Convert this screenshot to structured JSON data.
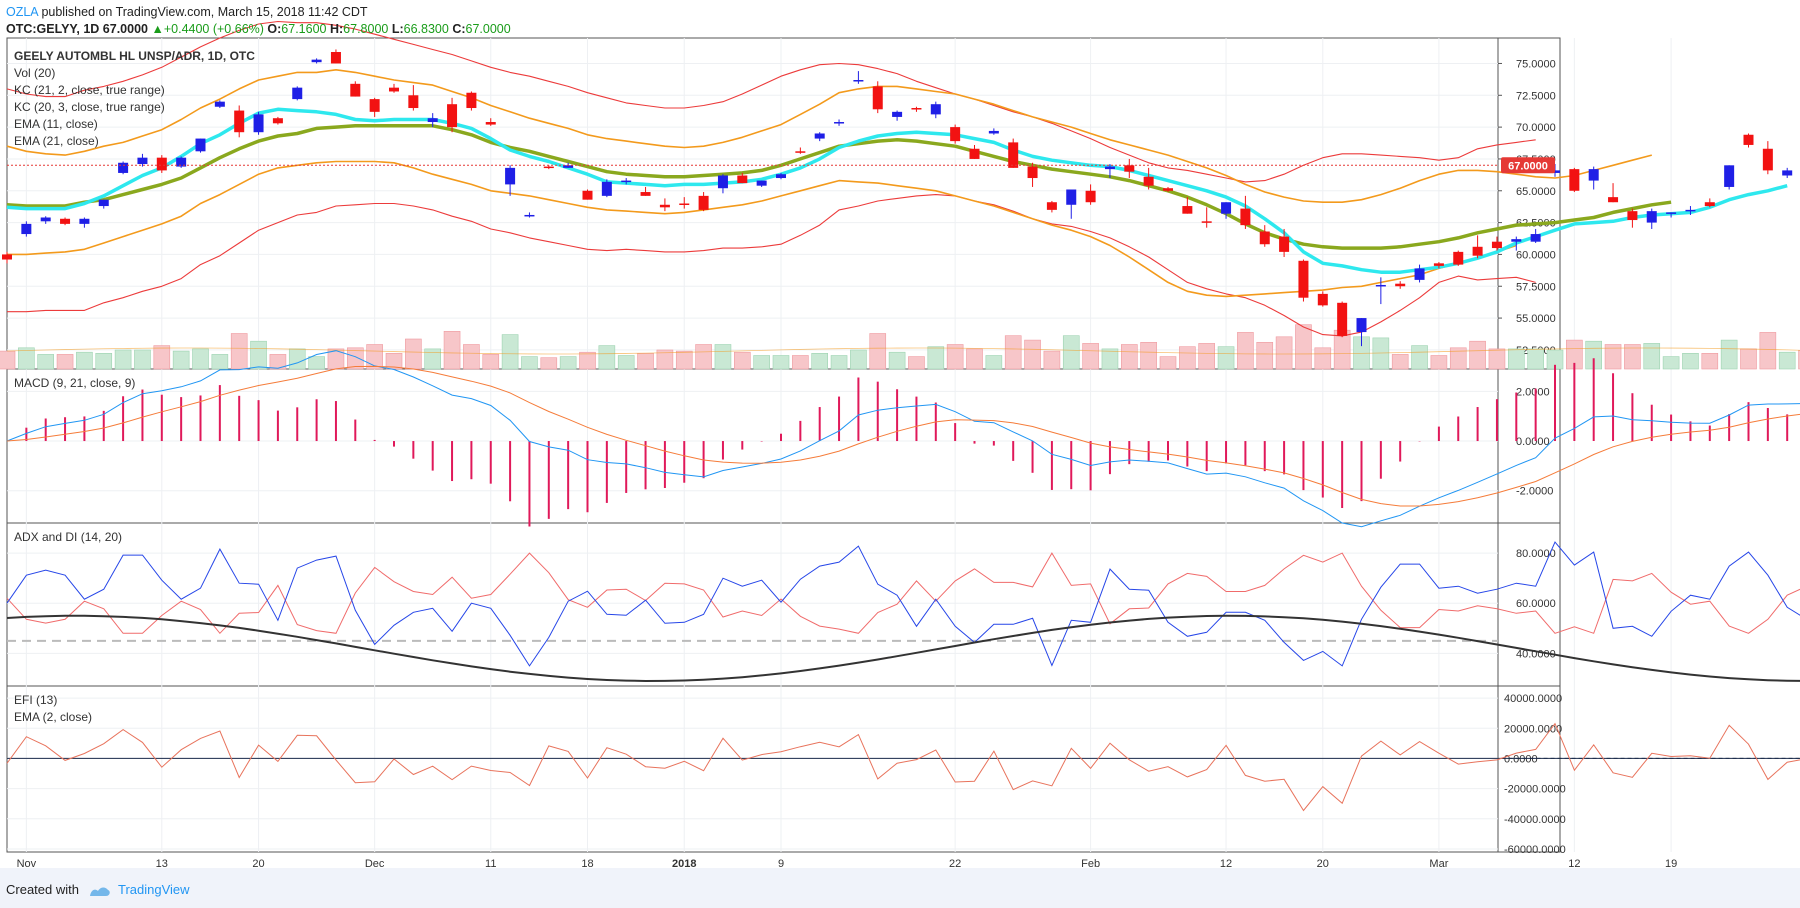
{
  "header": {
    "publisher": "OZLA",
    "published_text": "published on TradingView.com, March 15, 2018 11:42 CDT",
    "symbol_line": {
      "symbol": "OTC:GELYY, 1D",
      "last": "67.0000",
      "change": "+0.4400 (+0.66%)",
      "o_label": "O:",
      "o": "67.1600",
      "h_label": "H:",
      "h": "67.8000",
      "l_label": "L:",
      "l": "66.8300",
      "c_label": "C:",
      "c": "67.0000"
    }
  },
  "footer": {
    "created_with": "Created with",
    "brand": "TradingView"
  },
  "colors": {
    "bull": "#1f1fe6",
    "bear": "#f21212",
    "ema11": "#2ee8ee",
    "ema21": "#8aa81e",
    "kc_inner": "#f39a1c",
    "kc_outer": "#ec3b3b",
    "macd": "#2196f3",
    "signal": "#f57c3a",
    "hist": "#e0195a",
    "adx": "#333333",
    "di_plus": "#2646e8",
    "di_minus": "#f06b6b",
    "efi": "#e8735c",
    "last_price": "#e53935"
  },
  "chart_data": [
    {
      "type": "candlestick",
      "legend": [
        "GEELY AUTOMBL HL UNSP/ADR, 1D, OTC",
        "Vol (20)",
        "KC (21, 2, close, true range)",
        "KC (20, 3, close, true range)",
        "EMA (11, close)",
        "EMA (21, close)"
      ],
      "x_ticks": [
        "Nov",
        "13",
        "20",
        "Dec",
        "11",
        "18",
        "2018",
        "9",
        "22",
        "Feb",
        "12",
        "20",
        "Mar",
        "12",
        "19"
      ],
      "x_tick_index": [
        1,
        8,
        13,
        19,
        25,
        30,
        35,
        40,
        49,
        56,
        63,
        68,
        74,
        81,
        86
      ],
      "y_ticks": [
        "75.0000",
        "72.5000",
        "70.0000",
        "67.5000",
        "65.0000",
        "62.5000",
        "60.0000",
        "57.5000",
        "55.0000",
        "52.5000"
      ],
      "ylim": [
        51.0,
        77.0
      ],
      "last_price_label": "67.0000",
      "last_price": 67.0,
      "ohlc": [
        [
          60,
          60.2,
          59.3,
          59.6
        ],
        [
          61.6,
          62.6,
          61.4,
          62.4
        ],
        [
          62.6,
          63.0,
          62.4,
          62.9
        ],
        [
          62.8,
          62.9,
          62.3,
          62.4
        ],
        [
          62.4,
          62.9,
          62.1,
          62.8
        ],
        [
          63.8,
          64.3,
          63.6,
          64.3
        ],
        [
          66.4,
          67.3,
          66.3,
          67.2
        ],
        [
          67.1,
          67.9,
          66.9,
          67.6
        ],
        [
          67.6,
          67.8,
          66.4,
          66.6
        ],
        [
          66.9,
          67.7,
          66.8,
          67.6
        ],
        [
          68.1,
          69.1,
          68.0,
          69.1
        ],
        [
          71.6,
          72.1,
          71.5,
          72.0
        ],
        [
          71.3,
          71.7,
          69.2,
          69.6
        ],
        [
          69.6,
          71.2,
          69.4,
          71.0
        ],
        [
          70.7,
          70.8,
          70.2,
          70.3
        ],
        [
          72.2,
          73.2,
          72.1,
          73.1
        ],
        [
          75.1,
          75.4,
          75.0,
          75.3
        ],
        [
          75.9,
          76.1,
          75.0,
          75.0
        ],
        [
          73.4,
          73.6,
          72.4,
          72.4
        ],
        [
          72.2,
          72.3,
          70.8,
          71.2
        ],
        [
          73.1,
          73.4,
          72.7,
          72.8
        ],
        [
          72.5,
          73.3,
          71.3,
          71.5
        ],
        [
          70.4,
          71.1,
          70.0,
          70.7
        ],
        [
          71.8,
          72.3,
          69.6,
          70.0
        ],
        [
          72.7,
          72.8,
          71.3,
          71.5
        ],
        [
          70.4,
          70.7,
          70.1,
          70.2
        ],
        [
          65.5,
          67.0,
          64.6,
          66.8
        ],
        [
          63.1,
          63.3,
          62.9,
          63.1
        ],
        [
          66.9,
          67.0,
          66.7,
          66.8
        ],
        [
          66.8,
          67.2,
          66.8,
          67.0
        ],
        [
          65.0,
          65.1,
          64.3,
          64.3
        ],
        [
          64.6,
          65.9,
          64.5,
          65.7
        ],
        [
          65.8,
          66.0,
          65.5,
          65.8
        ],
        [
          64.9,
          65.3,
          64.6,
          64.6
        ],
        [
          63.9,
          64.4,
          63.4,
          63.7
        ],
        [
          64.0,
          64.5,
          63.6,
          63.9
        ],
        [
          64.6,
          64.9,
          63.4,
          63.5
        ],
        [
          65.2,
          66.3,
          64.8,
          66.2
        ],
        [
          66.2,
          66.4,
          65.6,
          65.6
        ],
        [
          65.4,
          65.8,
          65.3,
          65.8
        ],
        [
          66.0,
          66.4,
          65.9,
          66.3
        ],
        [
          68.1,
          68.4,
          67.9,
          68.0
        ],
        [
          69.1,
          69.6,
          68.9,
          69.5
        ],
        [
          70.3,
          70.6,
          70.1,
          70.4
        ],
        [
          73.7,
          74.4,
          73.4,
          73.7
        ],
        [
          73.2,
          73.6,
          71.1,
          71.4
        ],
        [
          70.8,
          71.3,
          70.5,
          71.2
        ],
        [
          71.5,
          71.6,
          71.2,
          71.4
        ],
        [
          71.0,
          72.0,
          70.7,
          71.8
        ],
        [
          70.0,
          70.2,
          68.7,
          68.9
        ],
        [
          68.3,
          68.6,
          67.5,
          67.5
        ],
        [
          69.5,
          69.9,
          69.4,
          69.7
        ],
        [
          68.8,
          69.1,
          66.8,
          66.8
        ],
        [
          66.9,
          67.2,
          65.3,
          66.0
        ],
        [
          64.1,
          64.2,
          63.3,
          63.5
        ],
        [
          63.9,
          65.1,
          62.8,
          65.1
        ],
        [
          65.0,
          65.5,
          63.9,
          64.1
        ],
        [
          66.7,
          67.1,
          66.0,
          66.9
        ],
        [
          67.0,
          67.5,
          66.0,
          66.5
        ],
        [
          66.1,
          66.8,
          65.1,
          65.4
        ],
        [
          65.2,
          65.3,
          64.9,
          65.0
        ],
        [
          63.8,
          64.5,
          63.2,
          63.2
        ],
        [
          62.6,
          63.7,
          62.1,
          62.5
        ],
        [
          63.2,
          64.1,
          62.8,
          64.1
        ],
        [
          63.6,
          64.6,
          62.0,
          62.3
        ],
        [
          61.8,
          62.3,
          60.6,
          60.8
        ],
        [
          61.4,
          62.0,
          59.8,
          60.2
        ],
        [
          59.5,
          59.6,
          56.3,
          56.6
        ],
        [
          56.9,
          57.1,
          55.9,
          56.0
        ],
        [
          56.2,
          56.3,
          53.5,
          53.6
        ],
        [
          53.9,
          55.0,
          52.8,
          55.0
        ],
        [
          57.5,
          58.2,
          56.1,
          57.6
        ],
        [
          57.7,
          57.9,
          57.3,
          57.5
        ],
        [
          58.0,
          59.2,
          57.8,
          58.9
        ],
        [
          59.3,
          59.4,
          58.9,
          59.1
        ],
        [
          60.2,
          60.3,
          59.1,
          59.2
        ],
        [
          60.6,
          61.5,
          59.7,
          59.9
        ],
        [
          61.0,
          61.4,
          60.3,
          60.5
        ],
        [
          61.0,
          61.4,
          60.3,
          61.2
        ],
        [
          61.0,
          62.0,
          60.9,
          61.6
        ],
        [
          66.4,
          67.1,
          66.1,
          66.6
        ],
        [
          66.7,
          66.8,
          64.9,
          65.0
        ],
        [
          65.8,
          66.9,
          65.1,
          66.7
        ],
        [
          64.5,
          65.6,
          64.1,
          64.1
        ],
        [
          63.4,
          63.6,
          62.1,
          62.7
        ],
        [
          62.5,
          63.6,
          62.0,
          63.4
        ],
        [
          63.2,
          63.3,
          62.9,
          63.3
        ],
        [
          63.4,
          63.8,
          63.1,
          63.5
        ],
        [
          64.1,
          64.4,
          63.7,
          63.8
        ],
        [
          65.3,
          67.0,
          65.1,
          67.0
        ],
        [
          69.4,
          69.5,
          68.4,
          68.6
        ],
        [
          68.3,
          68.9,
          66.3,
          66.6
        ],
        [
          66.2,
          66.8,
          66.0,
          66.6
        ],
        [
          67.16,
          67.8,
          66.83,
          67.0
        ]
      ],
      "ema11": [
        63.7,
        63.6,
        63.6,
        63.6,
        64.0,
        64.6,
        65.4,
        66.2,
        66.8,
        67.7,
        68.7,
        69.4,
        70.3,
        71.1,
        71.4,
        71.3,
        71.2,
        71.0,
        70.6,
        70.5,
        70.6,
        70.6,
        70.6,
        70.3,
        69.9,
        69.1,
        68.2,
        67.7,
        67.3,
        66.8,
        66.3,
        65.7,
        65.6,
        65.5,
        65.4,
        65.5,
        65.5,
        65.6,
        65.7,
        65.9,
        66.3,
        66.8,
        67.5,
        68.4,
        68.9,
        69.3,
        69.5,
        69.6,
        69.5,
        69.4,
        69.1,
        68.8,
        68.2,
        67.7,
        67.4,
        67.2,
        67.0,
        66.9,
        66.6,
        66.2,
        65.8,
        65.4,
        65.0,
        64.5,
        63.8,
        62.8,
        61.7,
        60.2,
        59.3,
        59.1,
        58.8,
        58.6,
        58.6,
        58.8,
        59.0,
        59.3,
        59.7,
        60.2,
        60.9,
        61.4,
        61.9,
        62.4,
        62.5,
        62.6,
        62.9,
        63.1,
        63.2,
        63.3,
        63.7,
        64.3,
        64.7,
        65.0,
        65.4
      ],
      "ema21": [
        63.9,
        63.8,
        63.8,
        63.8,
        64.1,
        64.3,
        64.7,
        65.1,
        65.5,
        66.0,
        66.8,
        67.6,
        68.3,
        68.9,
        69.3,
        69.5,
        69.9,
        70.0,
        70.1,
        70.1,
        70.1,
        70.1,
        70.1,
        69.8,
        69.4,
        68.8,
        68.4,
        68.1,
        67.7,
        67.3,
        66.9,
        66.5,
        66.3,
        66.2,
        66.1,
        66.1,
        66.2,
        66.3,
        66.4,
        66.6,
        67.0,
        67.5,
        68.0,
        68.5,
        68.7,
        68.9,
        69.0,
        68.9,
        68.7,
        68.5,
        68.1,
        67.7,
        67.3,
        67.0,
        66.7,
        66.5,
        66.3,
        66.1,
        65.8,
        65.4,
        65.0,
        64.5,
        63.9,
        63.2,
        62.4,
        61.7,
        61.2,
        60.8,
        60.6,
        60.5,
        60.5,
        60.5,
        60.6,
        60.8,
        61.0,
        61.3,
        61.7,
        62.0,
        62.3,
        62.4,
        62.5,
        62.7,
        62.9,
        63.3,
        63.6,
        63.9,
        64.1
      ],
      "kc_inner_upper": [
        68.5,
        68.1,
        67.9,
        67.8,
        68.1,
        68.5,
        68.8,
        69.3,
        69.8,
        70.6,
        71.5,
        72.2,
        73.0,
        73.7,
        74.0,
        74.3,
        74.3,
        74.5,
        74.3,
        74.0,
        73.7,
        73.5,
        73.3,
        72.8,
        72.3,
        71.7,
        71.2,
        70.7,
        70.3,
        69.9,
        69.4,
        69.1,
        68.9,
        68.7,
        68.5,
        68.4,
        68.5,
        68.8,
        69.2,
        69.7,
        70.2,
        71.0,
        71.8,
        72.7,
        73.0,
        73.2,
        73.2,
        73.0,
        72.8,
        72.6,
        72.2,
        71.8,
        71.3,
        70.8,
        70.4,
        70.0,
        69.5,
        69.0,
        68.6,
        68.2,
        67.8,
        67.3,
        66.8,
        66.2,
        65.5,
        64.9,
        64.5,
        64.2,
        64.1,
        64.1,
        64.3,
        64.7,
        65.2,
        65.8,
        66.3,
        66.6,
        66.6,
        66.5,
        66.3,
        66.1,
        66.0,
        66.2,
        66.6,
        67.0,
        67.4,
        67.8
      ],
      "kc_inner_lower": [
        60.0,
        60.0,
        60.1,
        60.2,
        60.4,
        60.9,
        61.4,
        61.9,
        62.4,
        63.0,
        64.0,
        64.7,
        65.5,
        66.3,
        66.8,
        67.0,
        67.2,
        67.3,
        67.3,
        67.3,
        67.2,
        66.8,
        66.3,
        65.9,
        65.5,
        65.0,
        64.8,
        64.6,
        64.3,
        64.0,
        63.7,
        63.5,
        63.4,
        63.3,
        63.2,
        63.3,
        63.5,
        63.7,
        63.9,
        64.2,
        64.6,
        65.0,
        65.4,
        65.8,
        65.7,
        65.6,
        65.4,
        65.2,
        65.0,
        64.6,
        64.2,
        63.8,
        63.3,
        62.8,
        62.3,
        61.9,
        61.4,
        60.7,
        59.8,
        58.8,
        57.8,
        57.1,
        56.8,
        56.7,
        56.8,
        56.9,
        57.0,
        57.1,
        57.2,
        57.4,
        57.5,
        57.8,
        58.1,
        58.4,
        58.9,
        59.3,
        59.7,
        60.2,
        60.7
      ],
      "kc_outer_upper": [
        73.0,
        72.6,
        72.4,
        72.4,
        72.9,
        73.2,
        73.6,
        74.1,
        74.7,
        75.5,
        76.3,
        77.0,
        77.6,
        78.1,
        78.3,
        78.2,
        78.2,
        78.0,
        77.7,
        77.3,
        76.9,
        76.5,
        76.1,
        75.7,
        75.2,
        74.7,
        74.3,
        74.0,
        73.6,
        73.2,
        72.7,
        72.3,
        71.9,
        71.7,
        71.5,
        71.5,
        71.7,
        72.0,
        72.6,
        73.3,
        74.0,
        74.5,
        74.9,
        75.0,
        74.9,
        74.6,
        74.2,
        73.6,
        73.1,
        72.6,
        72.2,
        71.7,
        71.2,
        70.8,
        70.3,
        69.7,
        69.1,
        68.4,
        67.8,
        67.2,
        66.8,
        66.6,
        66.3,
        66.0,
        65.7,
        65.8,
        66.3,
        67.0,
        67.6,
        67.9,
        67.9,
        67.8,
        67.7,
        67.6,
        67.4,
        67.6,
        68.3,
        68.6,
        68.8,
        69.0
      ]
    }
  ]
}
